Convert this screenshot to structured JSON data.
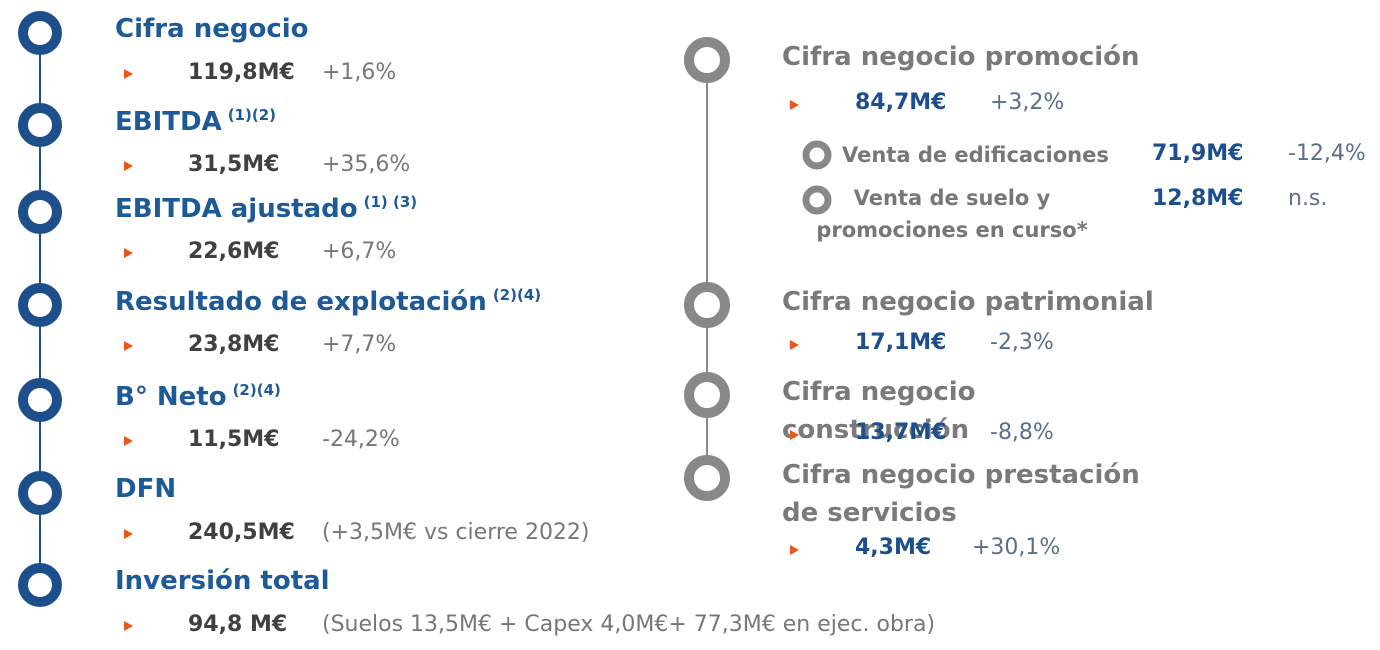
{
  "left": {
    "items": [
      {
        "title": "Cifra negocio",
        "value": "119,8M€",
        "change": "+1,6%"
      },
      {
        "title": "EBITDA",
        "sup": "(1)(2)",
        "value": "31,5M€",
        "change": "+35,6%"
      },
      {
        "title": "EBITDA ajustado",
        "sup": "(1) (3)",
        "value": "22,6M€",
        "change": "+6,7%"
      },
      {
        "title": "Resultado de explotación",
        "sup": "(2)(4)",
        "value": "23,8M€",
        "change": "+7,7%"
      },
      {
        "title": "B° Neto",
        "sup": "(2)(4)",
        "value": "11,5M€",
        "change": "-24,2%"
      },
      {
        "title": "DFN",
        "value": "240,5M€",
        "change": "(+3,5M€ vs cierre 2022)"
      },
      {
        "title": "Inversión total",
        "value": "94,8 M€",
        "change": "(Suelos 13,5M€ + Capex 4,0M€+ 77,3M€ en ejec. obra)"
      }
    ]
  },
  "right": {
    "items": [
      {
        "title": "Cifra negocio promoción",
        "value": "84,7M€",
        "change": "+3,2%",
        "subitems": [
          {
            "title": "Venta de edificaciones",
            "value": "71,9M€",
            "change": "-12,4%"
          },
          {
            "title": "Venta de suelo y promociones en curso*",
            "value": "12,8M€",
            "change": "n.s."
          }
        ]
      },
      {
        "title": "Cifra negocio patrimonial",
        "value": "17,1M€",
        "change": "-2,3%"
      },
      {
        "title": "Cifra negocio construcción",
        "value": "13,7M€",
        "change": "-8,8%"
      },
      {
        "title": "Cifra negocio prestación de servicios",
        "value": "4,3M€",
        "change": "+30,1%"
      }
    ]
  }
}
